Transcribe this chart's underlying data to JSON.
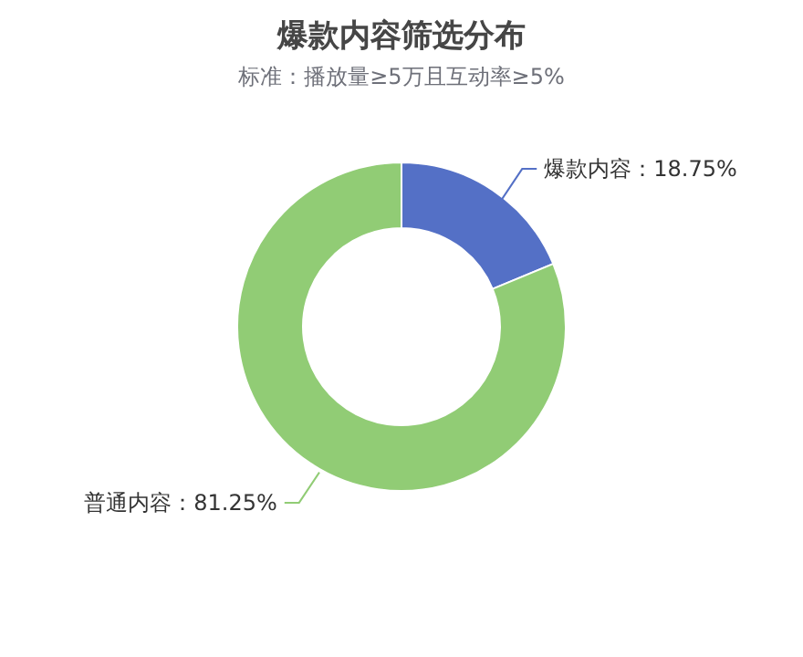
{
  "chart_data": {
    "type": "donut",
    "title": "爆款内容筛选分布",
    "subtitle": "标准：播放量≥5万且互动率≥5%",
    "categories": [
      "爆款内容",
      "普通内容"
    ],
    "values": [
      18.75,
      81.25
    ],
    "value_labels": [
      "：18.75%",
      "：81.25%"
    ],
    "colors": [
      "#5470c6",
      "#91cc75"
    ]
  }
}
